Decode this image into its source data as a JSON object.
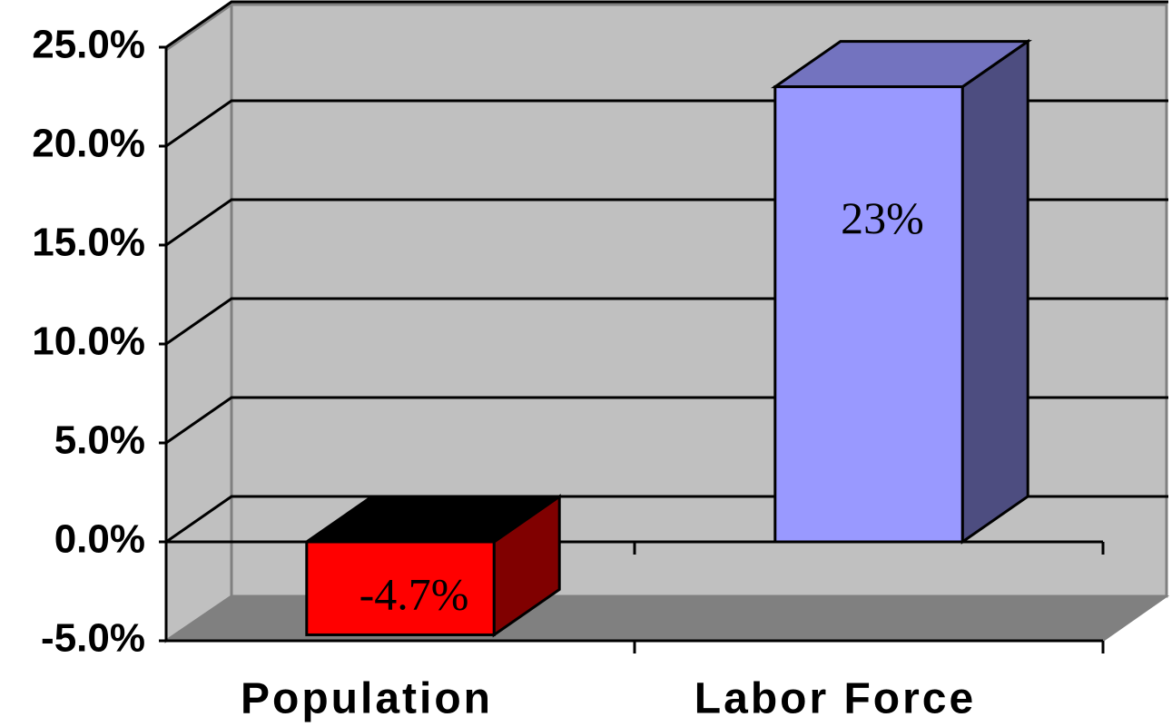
{
  "chart_data": {
    "type": "bar3d",
    "categories": [
      "Population",
      "Labor Force"
    ],
    "values": [
      -4.7,
      23
    ],
    "value_labels": [
      "-4.7%",
      "23%"
    ],
    "colors": [
      "#ff0000",
      "#9999ff"
    ],
    "ylim": [
      -5,
      25
    ],
    "yticks": [
      {
        "value": -5,
        "label": "-5.0%"
      },
      {
        "value": 0,
        "label": "0.0%"
      },
      {
        "value": 5,
        "label": "5.0%"
      },
      {
        "value": 10,
        "label": "10.0%"
      },
      {
        "value": 15,
        "label": "15.0%"
      },
      {
        "value": 20,
        "label": "20.0%"
      },
      {
        "value": 25,
        "label": "25.0%"
      }
    ],
    "grid": true
  }
}
